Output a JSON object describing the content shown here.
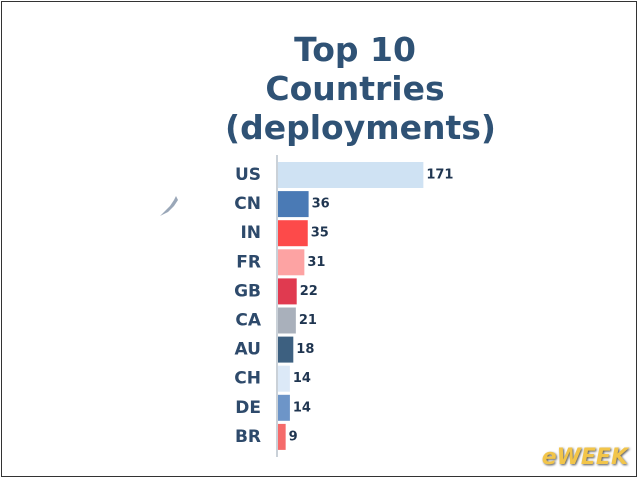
{
  "chart_data": {
    "type": "bar",
    "orientation": "horizontal",
    "title": "Top 10 Countries (deployments)",
    "categories": [
      "US",
      "CN",
      "IN",
      "FR",
      "GB",
      "CA",
      "AU",
      "CH",
      "DE",
      "BR"
    ],
    "values": [
      171,
      36,
      35,
      31,
      22,
      21,
      18,
      14,
      14,
      9
    ],
    "colors": [
      "#cfe2f3",
      "#4a7ab5",
      "#fd4a4a",
      "#fda3a3",
      "#e03a50",
      "#a9b0bb",
      "#3d6080",
      "#dce9f7",
      "#6d95c8",
      "#f56b6b"
    ]
  },
  "watermark": "eWEEK"
}
